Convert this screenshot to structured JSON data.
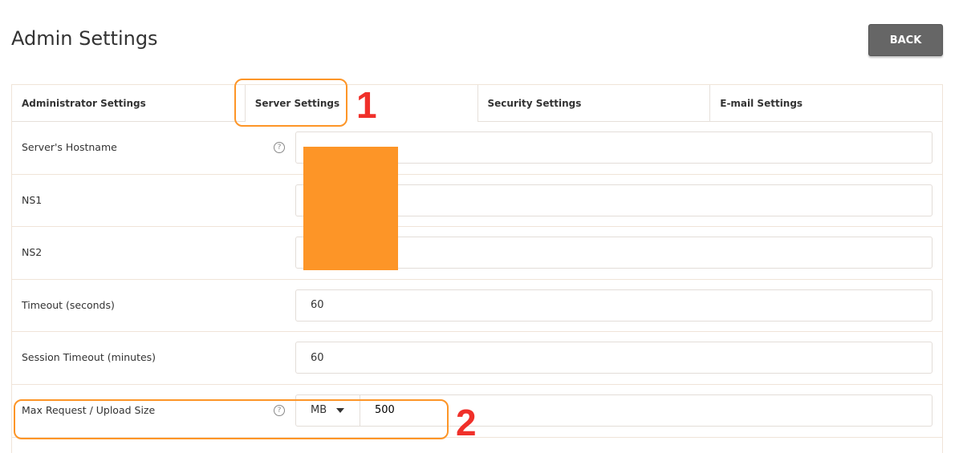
{
  "header": {
    "title": "Admin Settings",
    "back_label": "BACK"
  },
  "tabs": [
    {
      "label": "Administrator Settings"
    },
    {
      "label": "Server Settings",
      "active": true
    },
    {
      "label": "Security Settings"
    },
    {
      "label": "E-mail Settings"
    }
  ],
  "fields": [
    {
      "label": "Server's Hostname",
      "help": true,
      "value": ""
    },
    {
      "label": "NS1",
      "value": ""
    },
    {
      "label": "NS2",
      "value": ""
    },
    {
      "label": "Timeout (seconds)",
      "value": "60"
    },
    {
      "label": "Session Timeout (minutes)",
      "value": "60"
    },
    {
      "label": "Max Request / Upload Size",
      "help": true,
      "unit": "MB",
      "value": "500"
    }
  ],
  "help_glyph": "?",
  "annotations": [
    "1",
    "2"
  ],
  "colors": {
    "annotation_box": "#fd9527",
    "annotation_number": "#f0302a",
    "redaction": "#fd9527",
    "back_button": "#666666"
  }
}
